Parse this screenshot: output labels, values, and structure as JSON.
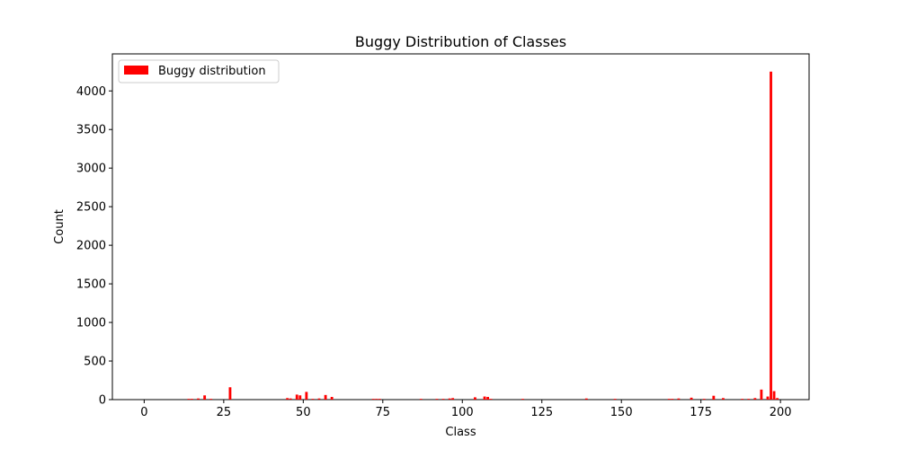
{
  "chart_data": {
    "type": "bar",
    "title": "Buggy Distribution of Classes",
    "xlabel": "Class",
    "ylabel": "Count",
    "xlim": [
      -10,
      209
    ],
    "ylim": [
      0,
      4480
    ],
    "xticks": [
      0,
      25,
      50,
      75,
      100,
      125,
      150,
      175,
      200
    ],
    "yticks": [
      0,
      500,
      1000,
      1500,
      2000,
      2500,
      3000,
      3500,
      4000
    ],
    "grid": false,
    "legend": {
      "location": "top-left",
      "entries": [
        {
          "label": "Buggy distribution",
          "color": "#ff0000"
        }
      ]
    },
    "series": [
      {
        "name": "Buggy distribution",
        "color": "#ff0000",
        "x": [
          14,
          15,
          17,
          19,
          21,
          27,
          45,
          46,
          48,
          49,
          51,
          53,
          55,
          57,
          59,
          72,
          73,
          74,
          87,
          92,
          94,
          96,
          97,
          104,
          107,
          108,
          109,
          119,
          139,
          148,
          165,
          166,
          168,
          172,
          176,
          179,
          182,
          188,
          190,
          192,
          194,
          196,
          197,
          198,
          199
        ],
        "values": [
          10,
          10,
          15,
          55,
          10,
          160,
          20,
          15,
          65,
          55,
          100,
          10,
          15,
          60,
          35,
          10,
          10,
          10,
          10,
          10,
          10,
          15,
          20,
          30,
          40,
          35,
          10,
          10,
          15,
          10,
          10,
          10,
          15,
          25,
          10,
          50,
          20,
          10,
          10,
          20,
          130,
          40,
          4250,
          110,
          20
        ]
      }
    ]
  }
}
